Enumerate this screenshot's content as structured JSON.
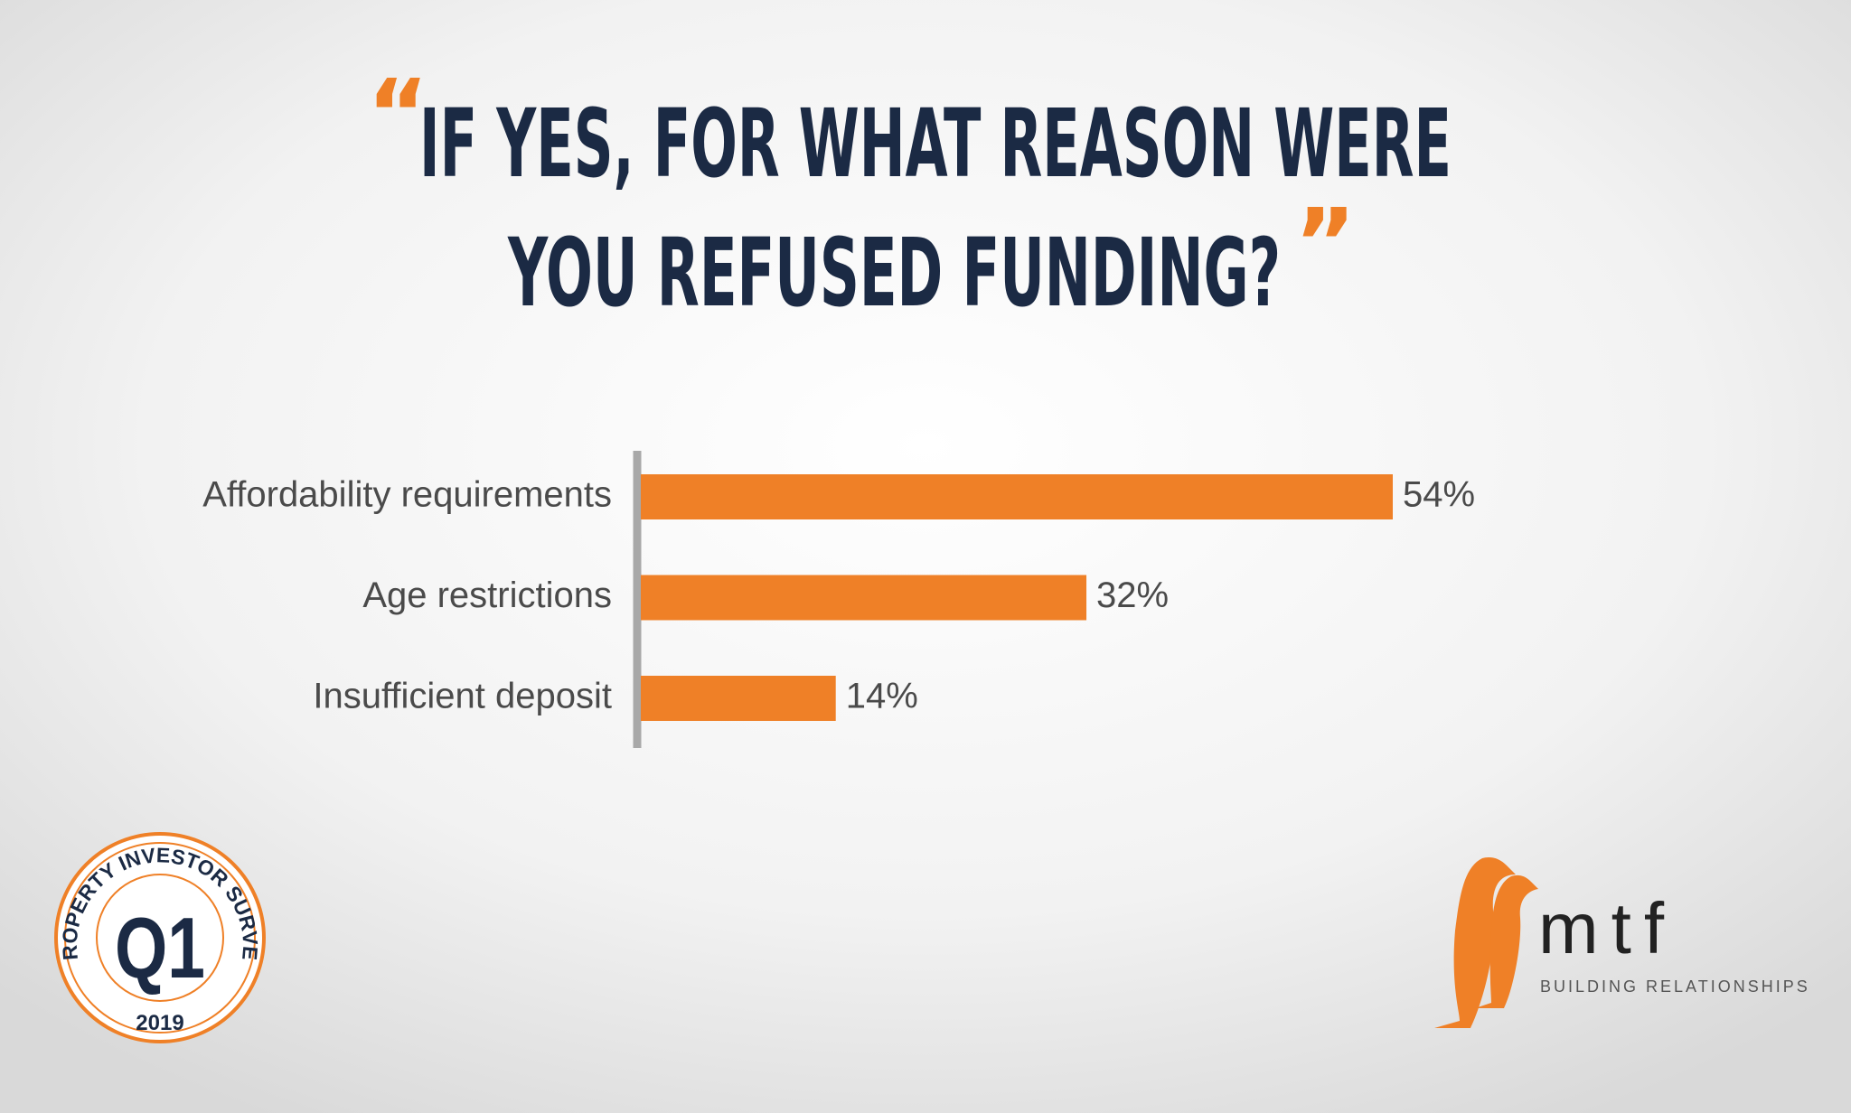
{
  "chart_data": {
    "type": "bar",
    "orientation": "horizontal",
    "title": [
      "IF YES, FOR WHAT REASON WERE",
      "YOU REFUSED FUNDING?"
    ],
    "title_open_quote": "“",
    "title_close_quote": "”",
    "categories": [
      "Affordability requirements",
      "Age restrictions",
      "Insufficient deposit"
    ],
    "values": [
      54,
      32,
      14
    ],
    "value_labels": [
      "54%",
      "32%",
      "14%"
    ],
    "color": "#ef8027"
  },
  "badge": {
    "ring_text": "PROPERTY INVESTOR SURVEY",
    "label": "Q1",
    "year": "2019"
  },
  "logo": {
    "name": "mtf",
    "tagline": "BUILDING RELATIONSHIPS"
  }
}
